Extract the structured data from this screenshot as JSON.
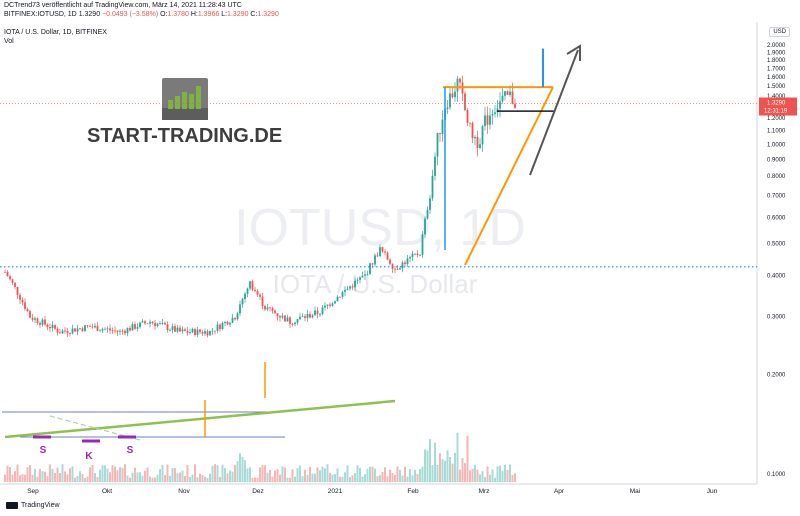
{
  "header": {
    "publisher": "DCTrend73 veröffentlicht auf TradingView.com, März 14, 2021 11:28:43 UTC",
    "ticker": "BITFINEX:IOTUSD, 1D",
    "last": "1.3290",
    "change": "−0.0493 (−3.58%)",
    "o_label": "O:",
    "o": "1.3780",
    "h_label": "H:",
    "h": "1.3966",
    "l_label": "L:",
    "l": "1.3290",
    "c_label": "C:",
    "c": "1.3290"
  },
  "symbol_line": "IOTA / U.S. Dollar, 1D, BITFINEX",
  "volume_label": "Vol",
  "axis_currency": "USD",
  "watermark": {
    "symbol": "IOTUSD, 1D",
    "name": "IOTA / U.S. Dollar"
  },
  "logo_text": "START-TRADING.DE",
  "price_tag": {
    "price": "1.3290",
    "countdown": "12:31:19"
  },
  "footer_brand": "TradingView",
  "pattern_labels": [
    "S",
    "K",
    "S"
  ],
  "colors": {
    "up": "#26a69a",
    "down": "#ef5350",
    "orange": "#ff9800",
    "green_line": "#8bc34a",
    "blue": "#2196f3",
    "purple": "#9c27b0",
    "dotted": "#1e88e5"
  },
  "chart_data": {
    "type": "candlestick",
    "y_scale": "log",
    "ylim": [
      0.09,
      2.15
    ],
    "y_ticks": [
      "2.0000",
      "1.9000",
      "1.8000",
      "1.7000",
      "1.6000",
      "1.5000",
      "1.4000",
      "1.3000",
      "1.2000",
      "1.1000",
      "1.0000",
      "0.9000",
      "0.8000",
      "0.7000",
      "0.6000",
      "0.5000",
      "0.4000",
      "0.3000",
      "0.2000",
      "0.1000"
    ],
    "x_ticks": [
      "Sep",
      "Okt",
      "Nov",
      "Dez",
      "2021",
      "Feb",
      "Mrz",
      "Apr",
      "Mai",
      "Jun"
    ],
    "resistance_level": 0.425,
    "triangle_top": 1.49,
    "breakdown_level": 1.26,
    "target_level": 1.95
  }
}
